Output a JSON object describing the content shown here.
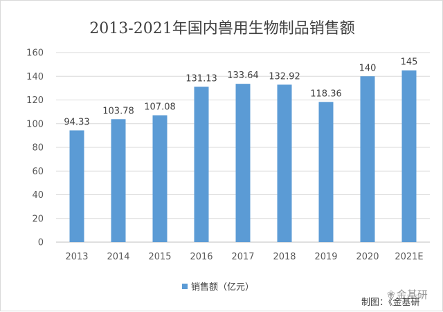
{
  "chart_data": {
    "type": "bar",
    "title": "2013-2021年国内兽用生物制品销售额",
    "categories": [
      "2013",
      "2014",
      "2015",
      "2016",
      "2017",
      "2018",
      "2019",
      "2020",
      "2021E"
    ],
    "series": [
      {
        "name": "销售额（亿元）",
        "values": [
          94.33,
          103.78,
          107.08,
          131.13,
          133.64,
          132.92,
          118.36,
          140,
          145
        ],
        "value_labels": [
          "94.33",
          "103.78",
          "107.08",
          "131.13",
          "133.64",
          "132.92",
          "118.36",
          "140",
          "145"
        ]
      }
    ],
    "ylim": [
      0,
      160
    ],
    "yticks": [
      0,
      20,
      40,
      60,
      80,
      100,
      120,
      140,
      160
    ],
    "grid": true,
    "legend": "bottom",
    "bar_color": "#5b9bd5"
  },
  "credit": "制图：《金基研",
  "watermark": "金基研"
}
